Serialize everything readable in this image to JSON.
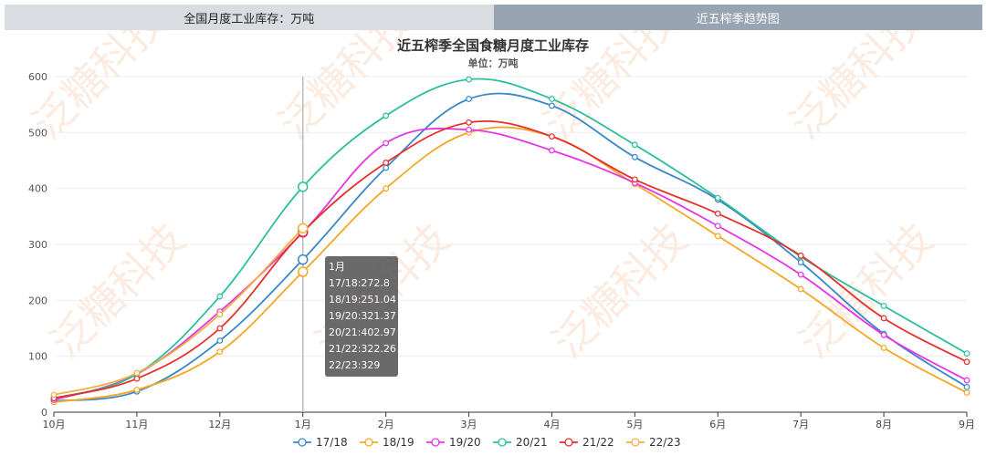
{
  "tabs": [
    {
      "label": "全国月度工业库存：万吨",
      "active": false
    },
    {
      "label": "近五榨季趋势图",
      "active": true
    }
  ],
  "watermark": "泛糖科技",
  "chart_data": {
    "type": "line",
    "title": "近五榨季全国食糖月度工业库存",
    "subtitle": "单位：万吨",
    "categories": [
      "10月",
      "11月",
      "12月",
      "1月",
      "2月",
      "3月",
      "4月",
      "5月",
      "6月",
      "7月",
      "8月",
      "9月"
    ],
    "ylim": [
      0,
      600
    ],
    "yticks": [
      0,
      100,
      200,
      300,
      400,
      500,
      600
    ],
    "grid": true,
    "legend_position": "bottom",
    "series": [
      {
        "name": "17/18",
        "color": "#3a87c8",
        "values": [
          20,
          37,
          128,
          272.8,
          437,
          560,
          548,
          456,
          380,
          268,
          140,
          45
        ]
      },
      {
        "name": "18/19",
        "color": "#f5a623",
        "values": [
          18,
          40,
          108,
          251.04,
          400,
          500,
          493,
          408,
          315,
          220,
          115,
          35
        ]
      },
      {
        "name": "19/20",
        "color": "#e633e6",
        "values": [
          22,
          68,
          180,
          321.37,
          481,
          505,
          468,
          410,
          333,
          246,
          138,
          57
        ]
      },
      {
        "name": "20/21",
        "color": "#2bbf9b",
        "values": [
          25,
          68,
          207,
          402.97,
          530,
          595,
          560,
          478,
          383,
          278,
          190,
          105
        ]
      },
      {
        "name": "21/22",
        "color": "#e8302a",
        "values": [
          25,
          60,
          150,
          322.26,
          446,
          518,
          493,
          416,
          355,
          280,
          168,
          90
        ]
      },
      {
        "name": "22/23",
        "color": "#f0b040",
        "values": [
          31,
          70,
          175,
          329,
          null,
          null,
          null,
          null,
          null,
          null,
          null,
          null
        ]
      }
    ],
    "tooltip": {
      "title": "1月",
      "lines": [
        "17/18:272.8",
        "18/19:251.04",
        "19/20:321.37",
        "20/21:402.97",
        "21/22:322.26",
        "22/23:329"
      ]
    },
    "highlight_index": 3
  }
}
